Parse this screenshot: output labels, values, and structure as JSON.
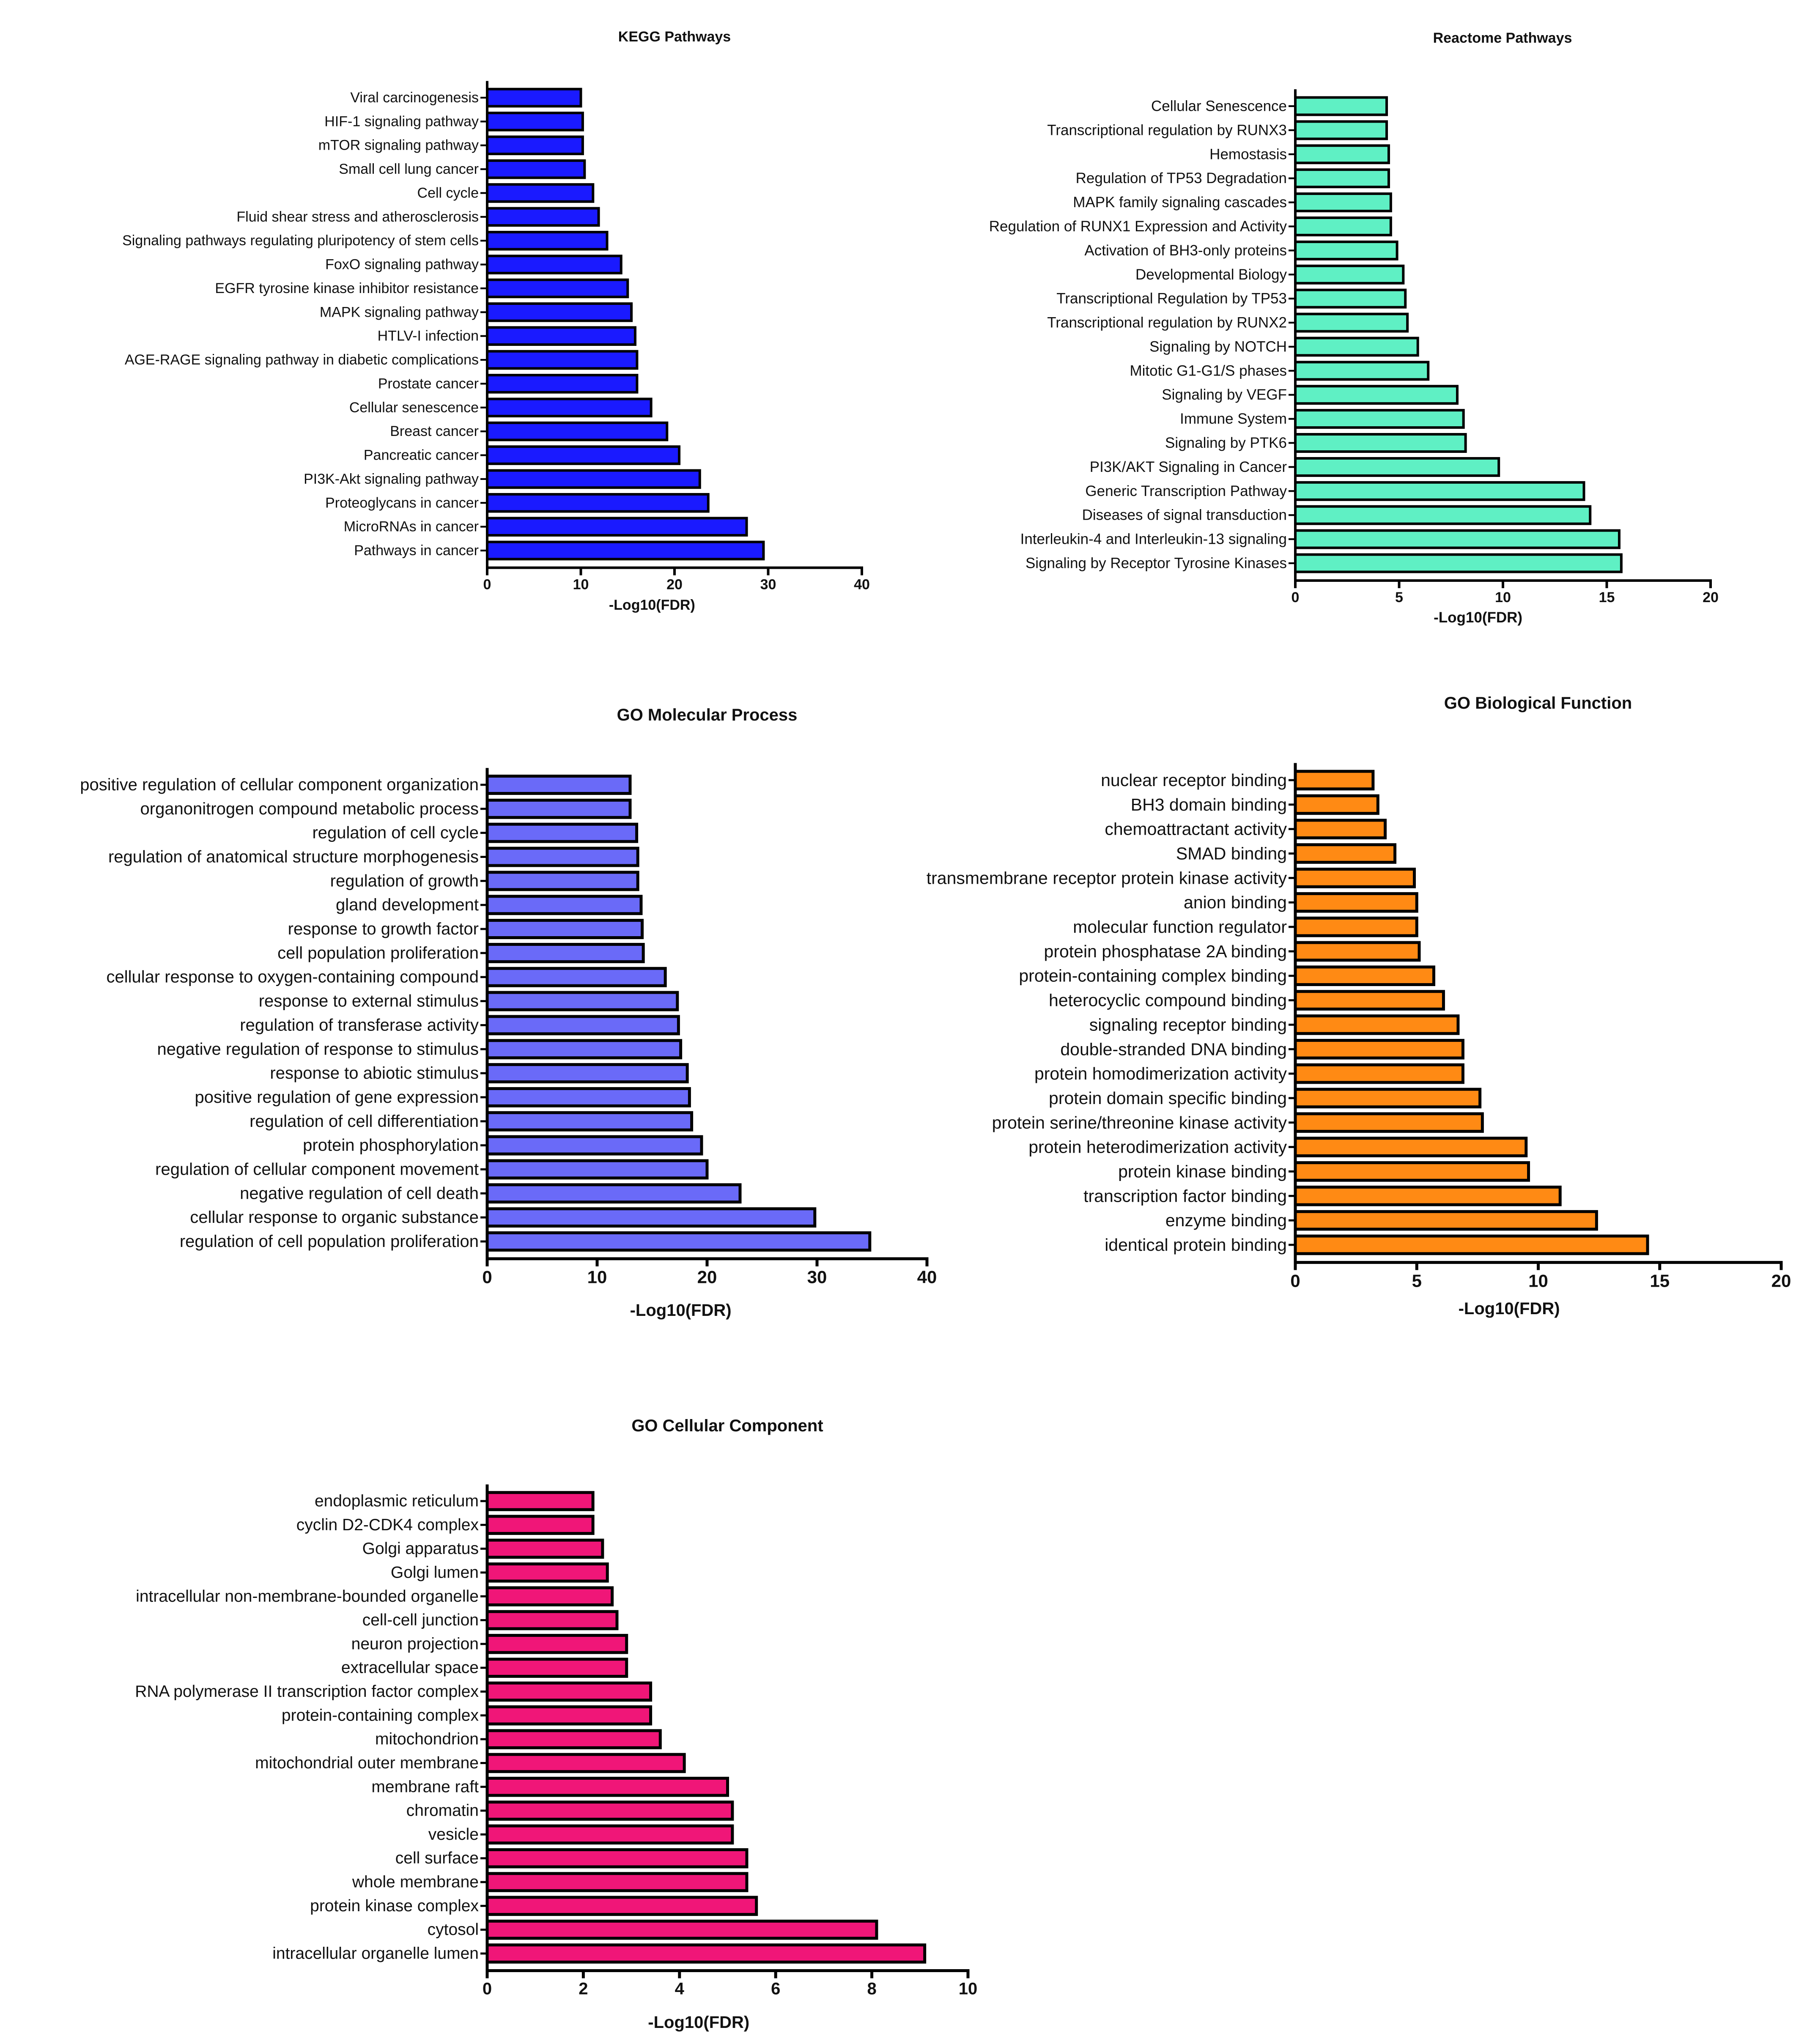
{
  "chart_data": [
    {
      "type": "bar",
      "orientation": "horizontal",
      "title": "KEGG Pathways",
      "xlabel": "-Log10(FDR)",
      "ylabel": "",
      "xlim": [
        0,
        40
      ],
      "xticks": [
        0,
        10,
        20,
        30,
        40
      ],
      "color": "#1a1aff",
      "categories": [
        "Viral carcinogenesis",
        "HIF-1 signaling pathway",
        "mTOR signaling pathway",
        "Small cell lung cancer",
        "Cell cycle",
        "Fluid shear stress and atherosclerosis",
        "Signaling pathways regulating pluripotency of stem cells",
        "FoxO signaling pathway",
        "EGFR tyrosine kinase inhibitor resistance",
        "MAPK signaling pathway",
        "HTLV-I infection",
        "AGE-RAGE signaling pathway in diabetic complications",
        "Prostate cancer",
        "Cellular senescence",
        "Breast cancer",
        "Pancreatic cancer",
        "PI3K-Akt signaling pathway",
        "Proteoglycans in cancer",
        "MicroRNAs in cancer",
        "Pathways in cancer"
      ],
      "values": [
        10.0,
        10.2,
        10.2,
        10.4,
        11.3,
        11.9,
        12.8,
        14.3,
        15.0,
        15.4,
        15.8,
        16.0,
        16.0,
        17.5,
        19.2,
        20.5,
        22.7,
        23.6,
        27.7,
        29.5
      ]
    },
    {
      "type": "bar",
      "orientation": "horizontal",
      "title": "Reactome Pathways",
      "xlabel": "-Log10(FDR)",
      "ylabel": "",
      "xlim": [
        0,
        20
      ],
      "xticks": [
        0,
        5,
        10,
        15,
        20
      ],
      "color": "#5ff0c4",
      "categories": [
        "Cellular Senescence",
        "Transcriptional regulation by RUNX3",
        "Hemostasis",
        "Regulation of TP53 Degradation",
        "MAPK family signaling cascades",
        "Regulation of RUNX1 Expression and Activity",
        "Activation of BH3-only proteins",
        "Developmental Biology",
        "Transcriptional Regulation by TP53",
        "Transcriptional regulation by RUNX2",
        "Signaling by NOTCH",
        "Mitotic G1-G1/S phases",
        "Signaling by VEGF",
        "Immune System",
        "Signaling by PTK6",
        "PI3K/AKT Signaling in Cancer",
        "Generic Transcription Pathway",
        "Diseases of signal transduction",
        "Interleukin-4 and Interleukin-13 signaling",
        "Signaling by Receptor Tyrosine Kinases"
      ],
      "values": [
        4.4,
        4.4,
        4.5,
        4.5,
        4.6,
        4.6,
        4.9,
        5.2,
        5.3,
        5.4,
        5.9,
        6.4,
        7.8,
        8.1,
        8.2,
        9.8,
        13.9,
        14.2,
        15.6,
        15.7
      ]
    },
    {
      "type": "bar",
      "orientation": "horizontal",
      "title": "GO Molecular Process",
      "xlabel": "-Log10(FDR)",
      "ylabel": "",
      "xlim": [
        0,
        40
      ],
      "xticks": [
        0,
        10,
        20,
        30,
        40
      ],
      "color": "#6a6af8",
      "categories": [
        "positive regulation of cellular component organization",
        "organonitrogen compound metabolic process",
        "regulation of cell cycle",
        "regulation of anatomical structure morphogenesis",
        "regulation of growth",
        "gland development",
        "response to growth factor",
        "cell population proliferation",
        "cellular response to oxygen-containing compound",
        "response to external stimulus",
        "regulation of transferase activity",
        "negative regulation of response to stimulus",
        "response to abiotic stimulus",
        "positive regulation of gene expression",
        "regulation of cell differentiation",
        "protein phosphorylation",
        "regulation of cellular component movement",
        "negative regulation of cell death",
        "cellular response to organic substance",
        "regulation of cell population proliferation"
      ],
      "values": [
        13.0,
        13.0,
        13.6,
        13.7,
        13.7,
        14.0,
        14.1,
        14.2,
        16.2,
        17.3,
        17.4,
        17.6,
        18.2,
        18.4,
        18.6,
        19.5,
        20.0,
        23.0,
        29.8,
        34.8
      ]
    },
    {
      "type": "bar",
      "orientation": "horizontal",
      "title": "GO Biological Function",
      "xlabel": "-Log10(FDR)",
      "ylabel": "",
      "xlim": [
        0,
        20
      ],
      "xticks": [
        0,
        5,
        10,
        15,
        20
      ],
      "color": "#ff8a14",
      "categories": [
        "nuclear receptor binding",
        "BH3 domain binding",
        "chemoattractant activity",
        "SMAD binding",
        "transmembrane receptor protein kinase activity",
        "anion binding",
        "molecular function regulator",
        "protein phosphatase 2A binding",
        "protein-containing complex binding",
        "heterocyclic compound binding",
        "signaling receptor binding",
        "double-stranded DNA binding",
        "protein homodimerization activity",
        "protein domain specific binding",
        "protein serine/threonine kinase activity",
        "protein heterodimerization activity",
        "protein kinase binding",
        "transcription factor binding",
        "enzyme binding",
        "identical protein binding"
      ],
      "values": [
        3.2,
        3.4,
        3.7,
        4.1,
        4.9,
        5.0,
        5.0,
        5.1,
        5.7,
        6.1,
        6.7,
        6.9,
        6.9,
        7.6,
        7.7,
        9.5,
        9.6,
        10.9,
        12.4,
        14.5
      ]
    },
    {
      "type": "bar",
      "orientation": "horizontal",
      "title": "GO Cellular Component",
      "xlabel": "-Log10(FDR)",
      "ylabel": "",
      "xlim": [
        0,
        10
      ],
      "xticks": [
        0,
        2,
        4,
        6,
        8,
        10
      ],
      "color": "#f01678",
      "categories": [
        "endoplasmic reticulum",
        "cyclin D2-CDK4 complex",
        "Golgi apparatus",
        "Golgi lumen",
        "intracellular non-membrane-bounded organelle",
        "cell-cell junction",
        "neuron projection",
        "extracellular space",
        "RNA polymerase II transcription factor complex",
        "protein-containing complex",
        "mitochondrion",
        "mitochondrial outer membrane",
        "membrane raft",
        "chromatin",
        "vesicle",
        "cell surface",
        "whole membrane",
        "protein kinase complex",
        "cytosol",
        "intracellular organelle lumen"
      ],
      "values": [
        2.2,
        2.2,
        2.4,
        2.5,
        2.6,
        2.7,
        2.9,
        2.9,
        3.4,
        3.4,
        3.6,
        4.1,
        5.0,
        5.1,
        5.1,
        5.4,
        5.4,
        5.6,
        8.1,
        9.1
      ]
    }
  ]
}
